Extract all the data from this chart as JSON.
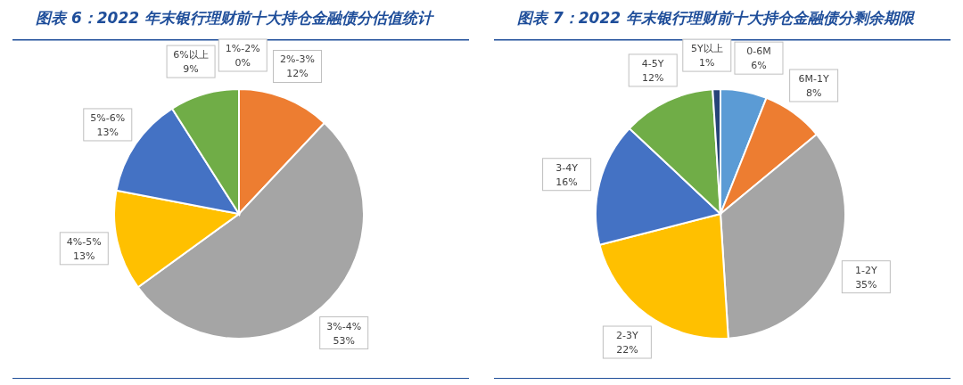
{
  "chart_data": [
    {
      "type": "pie",
      "title": "图表 6：2022 年末银行理财前十大持仓金融债分估值统计",
      "categories": [
        "1%-2%",
        "2%-3%",
        "3%-4%",
        "4%-5%",
        "5%-6%",
        "6%以上"
      ],
      "values": [
        0,
        12,
        53,
        13,
        13,
        9
      ],
      "value_labels": [
        "0%",
        "12%",
        "53%",
        "13%",
        "13%",
        "9%"
      ],
      "colors": [
        "#5b9bd5",
        "#ed7d31",
        "#a5a5a5",
        "#ffc000",
        "#4472c4",
        "#70ad47"
      ]
    },
    {
      "type": "pie",
      "title": "图表 7：2022 年末银行理财前十大持仓金融债分剩余期限",
      "categories": [
        "0-6M",
        "6M-1Y",
        "1-2Y",
        "2-3Y",
        "3-4Y",
        "4-5Y",
        "5Y以上"
      ],
      "values": [
        6,
        8,
        35,
        22,
        16,
        12,
        1
      ],
      "value_labels": [
        "6%",
        "8%",
        "35%",
        "22%",
        "16%",
        "12%",
        "1%"
      ],
      "colors": [
        "#5b9bd5",
        "#ed7d31",
        "#a5a5a5",
        "#ffc000",
        "#4472c4",
        "#70ad47",
        "#264478"
      ]
    }
  ]
}
